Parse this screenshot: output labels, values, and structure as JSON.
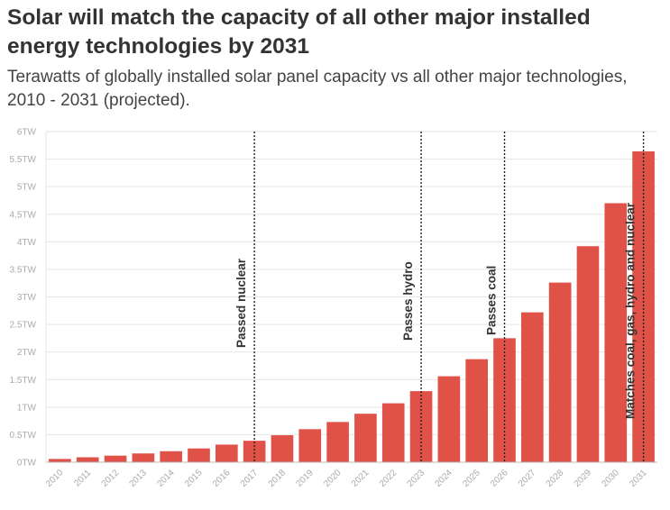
{
  "title": "Solar will match the capacity of all other major installed energy technologies by 2031",
  "subtitle": "Terawatts of globally installed solar panel capacity vs all other major technologies, 2010 - 2031 (projected).",
  "colors": {
    "bar": "#e05248",
    "grid": "#e6e6e6",
    "axis": "#bbbbbb",
    "tick_text": "#aaaaaa",
    "title": "#333333"
  },
  "chart_data": {
    "type": "bar",
    "title": "Solar will match the capacity of all other major installed energy technologies by 2031",
    "subtitle": "Terawatts of globally installed solar panel capacity vs all other major technologies, 2010 - 2031 (projected).",
    "xlabel": "",
    "ylabel": "",
    "categories": [
      "2010",
      "2011",
      "2012",
      "2013",
      "2014",
      "2015",
      "2016",
      "2017",
      "2018",
      "2019",
      "2020",
      "2021",
      "2022",
      "2023",
      "2024",
      "2025",
      "2026",
      "2027",
      "2028",
      "2029",
      "2030",
      "2031"
    ],
    "values": [
      0.06,
      0.09,
      0.12,
      0.16,
      0.2,
      0.25,
      0.32,
      0.39,
      0.49,
      0.6,
      0.73,
      0.88,
      1.07,
      1.29,
      1.56,
      1.87,
      2.25,
      2.72,
      3.26,
      3.92,
      4.7,
      5.64
    ],
    "ylim": [
      0,
      6
    ],
    "yticks": [
      0,
      0.5,
      1,
      1.5,
      2,
      2.5,
      3,
      3.5,
      4,
      4.5,
      5,
      5.5,
      6
    ],
    "ytick_labels": [
      "0TW",
      "0.5TW",
      "1TW",
      "1.5TW",
      "2TW",
      "2.5TW",
      "3TW",
      "3.5TW",
      "4TW",
      "4.5TW",
      "5TW",
      "5.5TW",
      "6TW"
    ],
    "grid": true,
    "legend": "none",
    "annotations": [
      {
        "year": "2017",
        "text": "Passed nuclear"
      },
      {
        "year": "2023",
        "text": "Passes hydro"
      },
      {
        "year": "2026",
        "text": "Passes coal"
      },
      {
        "year": "2031",
        "text": "Matches coal, gas, hydro and nuclear"
      }
    ]
  }
}
